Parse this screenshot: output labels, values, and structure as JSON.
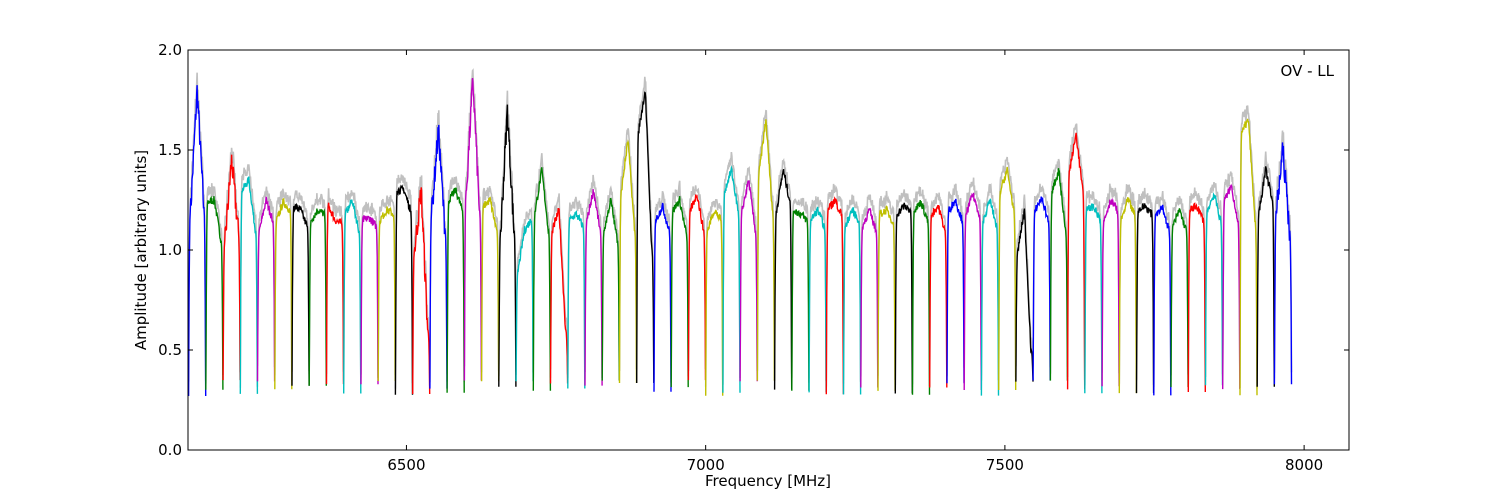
{
  "chart_data": {
    "type": "line",
    "title": "",
    "annotation": "OV - LL",
    "xlabel": "Frequency [MHz]",
    "ylabel": "Amplitude [arbitrary units]",
    "xlim": [
      6135,
      8075
    ],
    "ylim": [
      0,
      2.0
    ],
    "xticks": [
      6500,
      7000,
      7500,
      8000
    ],
    "xtick_labels": [
      "6500",
      "7000",
      "7500",
      "8000"
    ],
    "yticks": [
      0.0,
      0.5,
      1.0,
      1.5,
      2.0
    ],
    "ytick_labels": [
      "0.0",
      "0.5",
      "1.0",
      "1.5",
      "2.0"
    ],
    "grid": false,
    "legend": "none",
    "channel_width_mhz": 32,
    "colors": [
      "#0000ff",
      "#008000",
      "#ff0000",
      "#00bfbf",
      "#bfbf00",
      "#000000",
      "#bf00bf"
    ],
    "background_color": "#c0c0c0",
    "series": [
      {
        "color": "#0000ff",
        "values": [
          1.2,
          1.8,
          1.22
        ]
      },
      {
        "color": "#008000",
        "values": [
          1.24,
          1.25,
          1.05
        ]
      },
      {
        "color": "#ff0000",
        "values": [
          1.05,
          1.45,
          1.1
        ]
      },
      {
        "color": "#00bfbf",
        "values": [
          1.3,
          1.35,
          1.1
        ]
      },
      {
        "color": "#bf00bf",
        "values": [
          1.1,
          1.25,
          1.15
        ]
      },
      {
        "color": "#bfbf00",
        "values": [
          1.15,
          1.24,
          1.2
        ]
      },
      {
        "color": "#000000",
        "values": [
          1.22,
          1.2,
          1.12
        ]
      },
      {
        "color": "#008000",
        "values": [
          1.15,
          1.2,
          1.18
        ]
      },
      {
        "color": "#ff0000",
        "values": [
          1.22,
          1.15,
          1.13
        ]
      },
      {
        "color": "#00bfbf",
        "values": [
          1.18,
          1.25,
          1.1
        ]
      },
      {
        "color": "#bf00bf",
        "values": [
          1.15,
          1.16,
          1.12
        ]
      },
      {
        "color": "#bfbf00",
        "values": [
          1.15,
          1.2,
          1.18
        ]
      },
      {
        "color": "#000000",
        "values": [
          1.3,
          1.3,
          1.2
        ]
      },
      {
        "color": "#ff0000",
        "values": [
          1.0,
          1.3,
          0.6
        ]
      },
      {
        "color": "#0000ff",
        "values": [
          1.2,
          1.6,
          1.1
        ]
      },
      {
        "color": "#008000",
        "values": [
          1.25,
          1.3,
          1.2
        ]
      },
      {
        "color": "#bf00bf",
        "values": [
          1.3,
          1.85,
          1.2
        ]
      },
      {
        "color": "#bfbf00",
        "values": [
          1.22,
          1.25,
          1.1
        ]
      },
      {
        "color": "#000000",
        "values": [
          1.1,
          1.7,
          1.1
        ]
      },
      {
        "color": "#00bfbf",
        "values": [
          0.9,
          1.1,
          1.15
        ]
      },
      {
        "color": "#008000",
        "values": [
          1.2,
          1.4,
          1.1
        ]
      },
      {
        "color": "#ff0000",
        "values": [
          1.1,
          1.2,
          0.6
        ]
      },
      {
        "color": "#00bfbf",
        "values": [
          1.15,
          1.18,
          1.12
        ]
      },
      {
        "color": "#bf00bf",
        "values": [
          1.15,
          1.3,
          1.1
        ]
      },
      {
        "color": "#008000",
        "values": [
          1.1,
          1.25,
          1.05
        ]
      },
      {
        "color": "#bfbf00",
        "values": [
          1.3,
          1.55,
          1.1
        ]
      },
      {
        "color": "#000000",
        "values": [
          1.6,
          1.8,
          1.0
        ]
      },
      {
        "color": "#0000ff",
        "values": [
          1.15,
          1.22,
          1.1
        ]
      },
      {
        "color": "#008000",
        "values": [
          1.2,
          1.25,
          1.08
        ]
      },
      {
        "color": "#ff0000",
        "values": [
          1.2,
          1.28,
          1.1
        ]
      },
      {
        "color": "#bfbf00",
        "values": [
          1.1,
          1.2,
          1.15
        ]
      },
      {
        "color": "#00bfbf",
        "values": [
          1.3,
          1.4,
          1.2
        ]
      },
      {
        "color": "#bf00bf",
        "values": [
          1.2,
          1.35,
          1.1
        ]
      },
      {
        "color": "#bfbf00",
        "values": [
          1.4,
          1.65,
          1.2
        ]
      },
      {
        "color": "#000000",
        "values": [
          1.2,
          1.4,
          1.25
        ]
      },
      {
        "color": "#008000",
        "values": [
          1.2,
          1.18,
          1.15
        ]
      },
      {
        "color": "#00bfbf",
        "values": [
          1.15,
          1.2,
          1.12
        ]
      },
      {
        "color": "#ff0000",
        "values": [
          1.2,
          1.25,
          1.18
        ]
      },
      {
        "color": "#00bfbf",
        "values": [
          1.12,
          1.2,
          1.15
        ]
      },
      {
        "color": "#bf00bf",
        "values": [
          1.12,
          1.2,
          1.1
        ]
      },
      {
        "color": "#bfbf00",
        "values": [
          1.18,
          1.2,
          1.14
        ]
      },
      {
        "color": "#000000",
        "values": [
          1.18,
          1.22,
          1.2
        ]
      },
      {
        "color": "#008000",
        "values": [
          1.2,
          1.24,
          1.15
        ]
      },
      {
        "color": "#ff0000",
        "values": [
          1.18,
          1.22,
          1.1
        ]
      },
      {
        "color": "#0000ff",
        "values": [
          1.2,
          1.25,
          1.15
        ]
      },
      {
        "color": "#bf00bf",
        "values": [
          1.18,
          1.28,
          1.18
        ]
      },
      {
        "color": "#00bfbf",
        "values": [
          1.15,
          1.25,
          1.12
        ]
      },
      {
        "color": "#bfbf00",
        "values": [
          1.3,
          1.4,
          1.2
        ]
      },
      {
        "color": "#000000",
        "values": [
          1.0,
          1.2,
          0.5
        ]
      },
      {
        "color": "#0000ff",
        "values": [
          1.2,
          1.26,
          1.15
        ]
      },
      {
        "color": "#008000",
        "values": [
          1.3,
          1.4,
          1.1
        ]
      },
      {
        "color": "#ff0000",
        "values": [
          1.4,
          1.58,
          1.3
        ]
      },
      {
        "color": "#00bfbf",
        "values": [
          1.2,
          1.22,
          1.15
        ]
      },
      {
        "color": "#bf00bf",
        "values": [
          1.15,
          1.25,
          1.2
        ]
      },
      {
        "color": "#bfbf00",
        "values": [
          1.15,
          1.25,
          1.18
        ]
      },
      {
        "color": "#000000",
        "values": [
          1.2,
          1.22,
          1.18
        ]
      },
      {
        "color": "#0000ff",
        "values": [
          1.18,
          1.22,
          1.1
        ]
      },
      {
        "color": "#008000",
        "values": [
          1.12,
          1.2,
          1.1
        ]
      },
      {
        "color": "#ff0000",
        "values": [
          1.2,
          1.22,
          1.15
        ]
      },
      {
        "color": "#00bfbf",
        "values": [
          1.2,
          1.28,
          1.15
        ]
      },
      {
        "color": "#bf00bf",
        "values": [
          1.25,
          1.32,
          1.15
        ]
      },
      {
        "color": "#bfbf00",
        "values": [
          1.6,
          1.65,
          1.15
        ]
      },
      {
        "color": "#000000",
        "values": [
          1.2,
          1.4,
          1.25
        ]
      },
      {
        "color": "#0000ff",
        "values": [
          1.2,
          1.5,
          1.1
        ]
      }
    ]
  }
}
